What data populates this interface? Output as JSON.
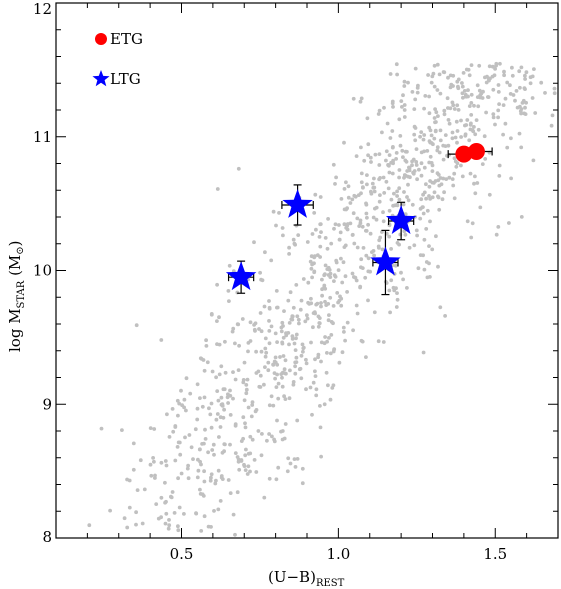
{
  "chart_data": {
    "type": "scatter",
    "xlim": [
      0.1,
      1.7
    ],
    "ylim": [
      8,
      12
    ],
    "xticks": [
      0.5,
      1.0,
      1.5
    ],
    "xtick_labels": [
      "0.5",
      "1.0",
      "1.5"
    ],
    "yticks": [
      8,
      9,
      10,
      11,
      12
    ],
    "ytick_labels": [
      "8",
      "9",
      "10",
      "11",
      "12"
    ],
    "xlabel": {
      "main": "(U−B)",
      "sub": "REST"
    },
    "ylabel": {
      "pre": "log  M",
      "sub": "STAR",
      "post": " (M",
      "sym": "⊙",
      "close": ")"
    },
    "legend": {
      "placement": "top-left",
      "entries": [
        {
          "label": "ETG",
          "marker": "circle",
          "color": "#ff0000"
        },
        {
          "label": "LTG",
          "marker": "star",
          "color": "#0000ff"
        }
      ]
    },
    "series": [
      {
        "name": "ETG",
        "marker": "circle",
        "color": "#ff0000",
        "points": [
          {
            "x": 1.4,
            "y": 10.87,
            "xerr": 0.05,
            "yerr": 0.0
          },
          {
            "x": 1.44,
            "y": 10.89,
            "xerr": 0.05,
            "yerr": 0.0
          }
        ]
      },
      {
        "name": "LTG",
        "marker": "star",
        "color": "#0000ff",
        "points": [
          {
            "x": 0.69,
            "y": 9.95,
            "xerr": 0.04,
            "yerr": 0.12
          },
          {
            "x": 0.87,
            "y": 10.49,
            "xerr": 0.05,
            "yerr": 0.15
          },
          {
            "x": 1.15,
            "y": 10.06,
            "xerr": 0.04,
            "yerr": 0.24
          },
          {
            "x": 1.2,
            "y": 10.37,
            "xerr": 0.04,
            "yerr": 0.14
          }
        ]
      }
    ],
    "background": {
      "color": "#c0c0c0",
      "count": 1100
    },
    "grid": false
  }
}
